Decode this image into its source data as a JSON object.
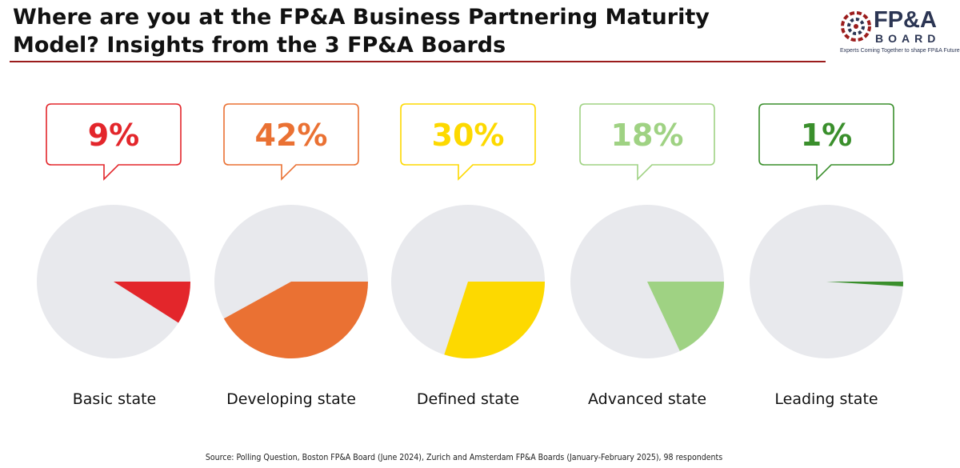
{
  "header": {
    "title_line1": "Where are you at the FP&A Business Partnering Maturity",
    "title_line2": "Model? Insights from the 3 FP&A Boards"
  },
  "logo": {
    "main": "FP&A",
    "sub": "BOARD",
    "tagline": "Experts Coming Together to shape FP&A Future"
  },
  "chart_data": {
    "type": "pie",
    "title": "Where are you at the FP&A Business Partnering Maturity Model? Insights from the 3 FP&A Boards",
    "categories": [
      "Basic state",
      "Developing state",
      "Defined state",
      "Advanced state",
      "Leading state"
    ],
    "values": [
      9,
      42,
      30,
      18,
      1
    ],
    "value_labels": [
      "9%",
      "42%",
      "30%",
      "18%",
      "1%"
    ],
    "unit": "%",
    "colors": [
      "#e3262b",
      "#ea7133",
      "#fdd900",
      "#9fd283",
      "#3a8f2c"
    ],
    "remainder_color": "#e8e9ed",
    "source": "Source: Polling Question, Boston FP&A Board (June 2024), Zurich and Amsterdam FP&A Boards (January-February 2025), 98 respondents"
  }
}
